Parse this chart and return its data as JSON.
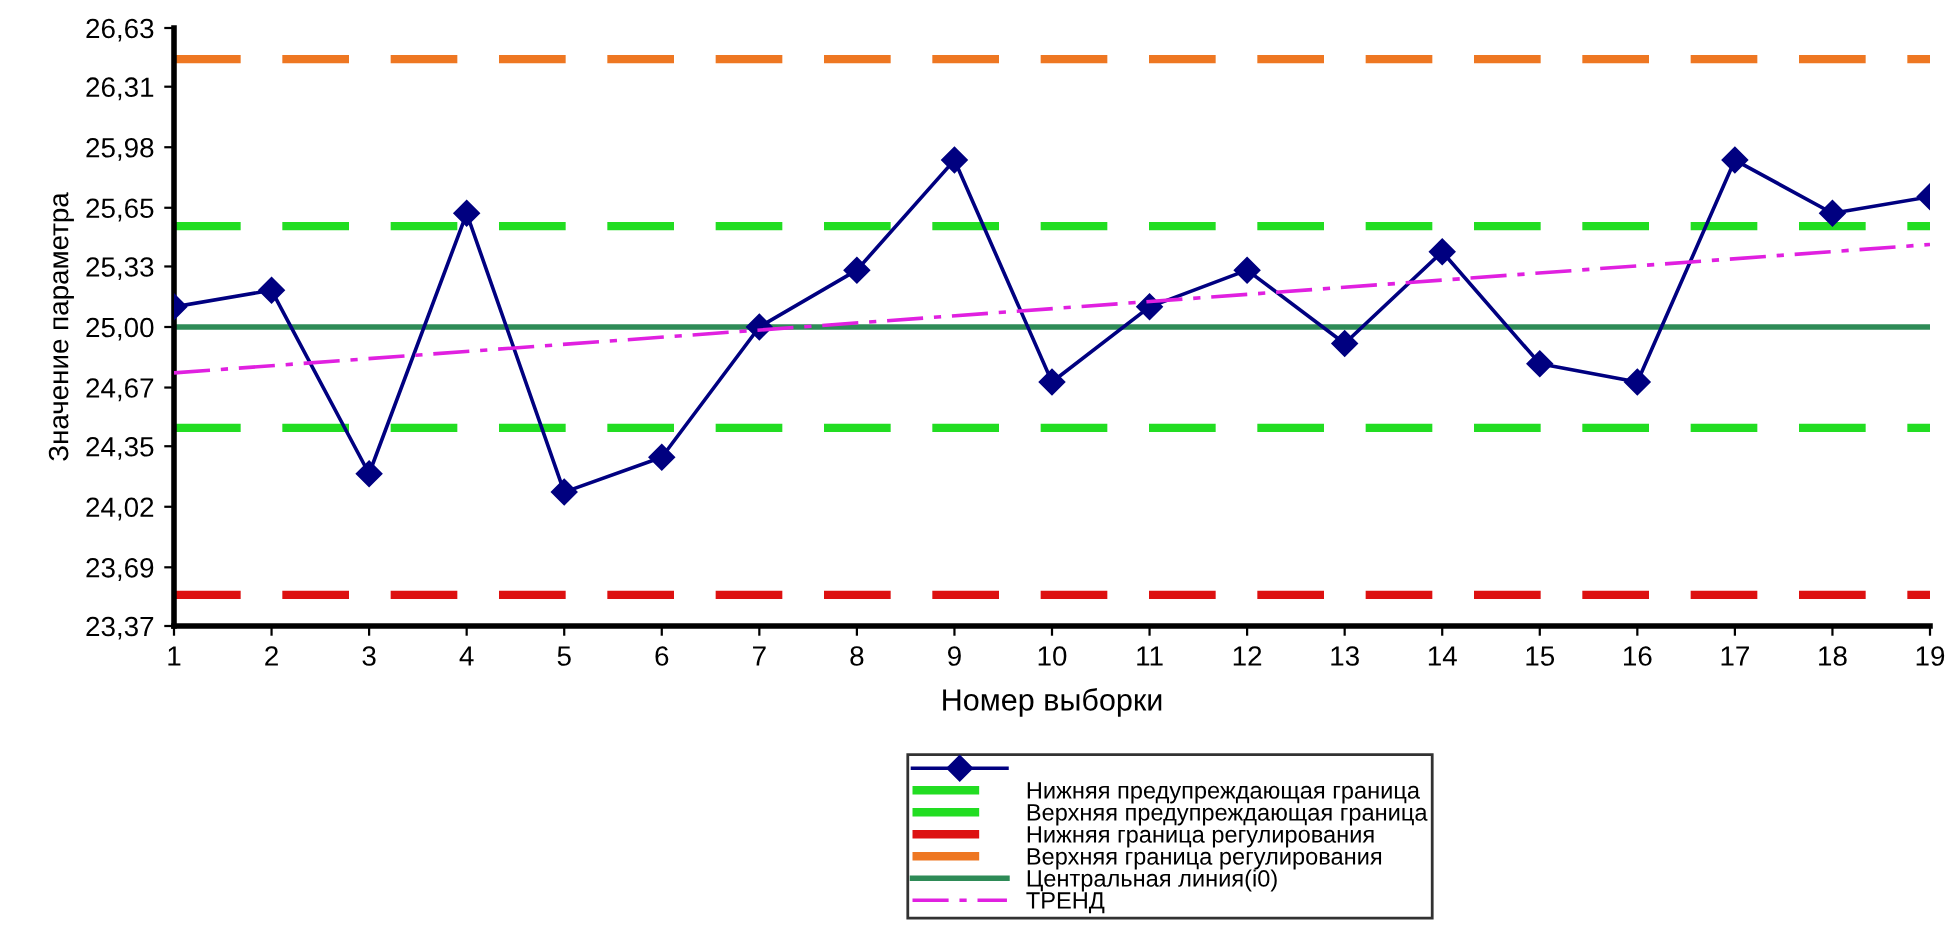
{
  "chart_data": {
    "type": "line",
    "xlabel": "Номер выборки",
    "ylabel": "Значение параметра",
    "x": [
      1,
      2,
      3,
      4,
      5,
      6,
      7,
      8,
      9,
      10,
      11,
      12,
      13,
      14,
      15,
      16,
      17,
      18,
      19
    ],
    "series": [
      {
        "color": "#000080",
        "marker": "diamond",
        "values": [
          25.11,
          25.2,
          24.2,
          25.62,
          24.1,
          24.29,
          25.0,
          25.31,
          25.91,
          24.7,
          25.11,
          25.31,
          24.91,
          25.41,
          24.8,
          24.7,
          25.91,
          25.62,
          25.71
        ]
      },
      {
        "name": "ТРЕНД",
        "type": "line",
        "color": "#e020e0",
        "line_style": "dashdot",
        "marker": "none",
        "x": [
          1,
          19
        ],
        "values": [
          24.75,
          25.45
        ]
      }
    ],
    "ref_lines": [
      {
        "axis": "y",
        "value": 24.45,
        "label": "Нижняя предупреждающая граница",
        "color": "#22dd22",
        "line_style": "dashed"
      },
      {
        "axis": "y",
        "value": 25.55,
        "label": "Верхняя предупреждающая граница",
        "color": "#22dd22",
        "line_style": "dashed"
      },
      {
        "axis": "y",
        "value": 23.54,
        "label": "Нижняя граница регулирования",
        "color": "#dd1111",
        "line_style": "dashed"
      },
      {
        "axis": "y",
        "value": 26.46,
        "label": "Верхняя граница регулирования",
        "color": "#ee7722",
        "line_style": "dashed"
      },
      {
        "axis": "y",
        "value": 25.0,
        "label": "Центральная линия(i0)",
        "color": "#2e8b57",
        "line_style": "solid"
      }
    ],
    "xlim": [
      1,
      19
    ],
    "xticks": [
      1,
      2,
      3,
      4,
      5,
      6,
      7,
      8,
      9,
      10,
      11,
      12,
      13,
      14,
      15,
      16,
      17,
      18,
      19
    ],
    "ylim": [
      23.37,
      26.63
    ],
    "yticks": [
      {
        "value": 23.37,
        "label": "23,37"
      },
      {
        "value": 23.69,
        "label": "23,69"
      },
      {
        "value": 24.02,
        "label": "24,02"
      },
      {
        "value": 24.35,
        "label": "24,35"
      },
      {
        "value": 24.67,
        "label": "24,67"
      },
      {
        "value": 25.0,
        "label": "25,00"
      },
      {
        "value": 25.33,
        "label": "25,33"
      },
      {
        "value": 25.65,
        "label": "25,65"
      },
      {
        "value": 25.98,
        "label": "25,98"
      },
      {
        "value": 26.31,
        "label": "26,31"
      },
      {
        "value": 26.63,
        "label": "26,63"
      }
    ],
    "grid": false,
    "legend": "bottom"
  }
}
